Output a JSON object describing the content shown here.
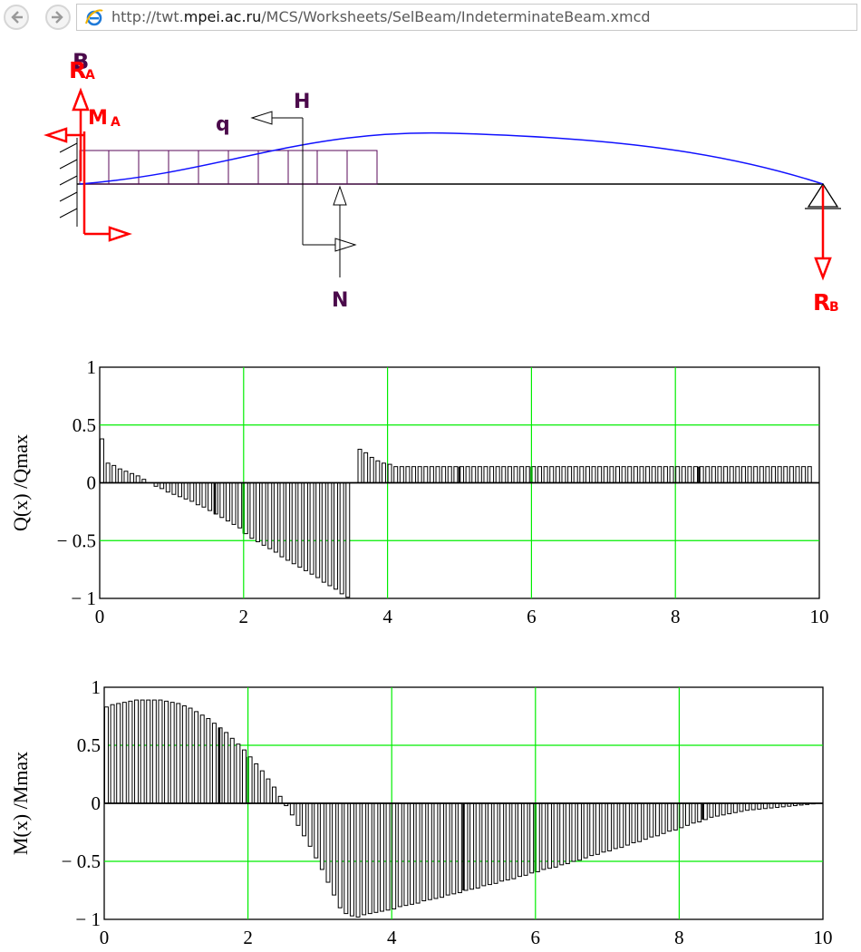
{
  "browser": {
    "url_host": "http://twt.",
    "url_domain": "mpei.ac.ru",
    "url_path": "/MCS/Worksheets/SelBeam/IndeterminateBeam.xmcd"
  },
  "diagram": {
    "labels": {
      "ra": "R",
      "ra_sub": "A",
      "b": "B",
      "ma": "M",
      "ma_sub": "A",
      "q": "q",
      "h": "H",
      "n": "N",
      "rb": "R",
      "rb_sub": "B"
    },
    "colors": {
      "reaction": "#ff0000",
      "label": "#4b0a4b",
      "load": "#5a0a5a",
      "deflection": "#1010ff",
      "beam": "#000000"
    }
  },
  "chart_data": [
    {
      "type": "bar",
      "title": "",
      "xlabel": "",
      "ylabel": "Q(x) /Qmax",
      "xlim": [
        0,
        10
      ],
      "ylim": [
        -1,
        1
      ],
      "xticks": [
        "0",
        "2",
        "4",
        "6",
        "8",
        "10"
      ],
      "yticks": [
        "1",
        "0.5",
        "0",
        "− 0.5",
        "− 1"
      ],
      "grid": true,
      "bar_width_x": 0.05,
      "bar_step_x": 0.083333,
      "highlight_bars_x": [
        1.6,
        5.0,
        8.33
      ],
      "x": [
        0.0,
        0.0833,
        0.1667,
        0.25,
        0.3333,
        0.4167,
        0.5,
        0.5833,
        0.6667,
        0.75,
        0.8333,
        0.9167,
        1.0,
        1.0833,
        1.1667,
        1.25,
        1.3333,
        1.4167,
        1.5,
        1.5833,
        1.6667,
        1.75,
        1.8333,
        1.9167,
        2.0,
        2.0833,
        2.1667,
        2.25,
        2.3333,
        2.4167,
        2.5,
        2.5833,
        2.6667,
        2.75,
        2.8333,
        2.9167,
        3.0,
        3.0833,
        3.1667,
        3.25,
        3.3333,
        3.4167,
        3.5,
        3.5833,
        3.6667,
        3.75,
        3.8333,
        3.9167,
        4.0,
        4.0833,
        4.1667,
        4.25,
        4.3333,
        4.4167,
        4.5,
        4.5833,
        4.6667,
        4.75,
        4.8333,
        4.9167,
        5.0,
        5.0833,
        5.1667,
        5.25,
        5.3333,
        5.4167,
        5.5,
        5.5833,
        5.6667,
        5.75,
        5.8333,
        5.9167,
        6.0,
        6.0833,
        6.1667,
        6.25,
        6.3333,
        6.4167,
        6.5,
        6.5833,
        6.6667,
        6.75,
        6.8333,
        6.9167,
        7.0,
        7.0833,
        7.1667,
        7.25,
        7.3333,
        7.4167,
        7.5,
        7.5833,
        7.6667,
        7.75,
        7.8333,
        7.9167,
        8.0,
        8.0833,
        8.1667,
        8.25,
        8.3333,
        8.4167,
        8.5,
        8.5833,
        8.6667,
        8.75,
        8.8333,
        8.9167,
        9.0,
        9.0833,
        9.1667,
        9.25,
        9.3333,
        9.4167,
        9.5,
        9.5833,
        9.6667,
        9.75,
        9.8333
      ],
      "values": [
        0.38,
        0.17,
        0.15,
        0.12,
        0.1,
        0.08,
        0.06,
        0.03,
        0.0,
        -0.03,
        -0.05,
        -0.08,
        -0.1,
        -0.12,
        -0.14,
        -0.16,
        -0.19,
        -0.21,
        -0.24,
        -0.27,
        -0.3,
        -0.33,
        -0.36,
        -0.39,
        -0.44,
        -0.48,
        -0.51,
        -0.54,
        -0.57,
        -0.6,
        -0.64,
        -0.67,
        -0.7,
        -0.73,
        -0.76,
        -0.79,
        -0.82,
        -0.86,
        -0.89,
        -0.92,
        -0.96,
        -0.99,
        0.0,
        0.29,
        0.26,
        0.22,
        0.19,
        0.17,
        0.16,
        0.14,
        0.14,
        0.14,
        0.14,
        0.14,
        0.14,
        0.14,
        0.14,
        0.14,
        0.14,
        0.14,
        0.14,
        0.14,
        0.14,
        0.14,
        0.14,
        0.14,
        0.14,
        0.14,
        0.14,
        0.14,
        0.14,
        0.14,
        0.14,
        0.14,
        0.14,
        0.14,
        0.14,
        0.14,
        0.14,
        0.14,
        0.14,
        0.14,
        0.14,
        0.14,
        0.14,
        0.14,
        0.14,
        0.14,
        0.14,
        0.14,
        0.14,
        0.14,
        0.14,
        0.14,
        0.14,
        0.14,
        0.14,
        0.14,
        0.14,
        0.14,
        0.14,
        0.14,
        0.14,
        0.14,
        0.14,
        0.14,
        0.14,
        0.14,
        0.14,
        0.14,
        0.14,
        0.14,
        0.14,
        0.14,
        0.14,
        0.14,
        0.14,
        0.14,
        0.14
      ]
    },
    {
      "type": "bar",
      "title": "",
      "xlabel": "",
      "ylabel": "M(x) /Mmax",
      "xlim": [
        0,
        10
      ],
      "ylim": [
        -1,
        1
      ],
      "xticks": [
        "0",
        "2",
        "4",
        "6",
        "8",
        "10"
      ],
      "yticks": [
        "1",
        "0.5",
        "0",
        "− 0.5",
        "− 1"
      ],
      "grid": true,
      "bar_width_x": 0.05,
      "bar_step_x": 0.083333,
      "highlight_bars_x": [
        1.6,
        5.0,
        8.33
      ],
      "x": [
        0.0,
        0.0833,
        0.1667,
        0.25,
        0.3333,
        0.4167,
        0.5,
        0.5833,
        0.6667,
        0.75,
        0.8333,
        0.9167,
        1.0,
        1.0833,
        1.1667,
        1.25,
        1.3333,
        1.4167,
        1.5,
        1.5833,
        1.6667,
        1.75,
        1.8333,
        1.9167,
        2.0,
        2.0833,
        2.1667,
        2.25,
        2.3333,
        2.4167,
        2.5,
        2.5833,
        2.6667,
        2.75,
        2.8333,
        2.9167,
        3.0,
        3.0833,
        3.1667,
        3.25,
        3.3333,
        3.4167,
        3.5,
        3.5833,
        3.6667,
        3.75,
        3.8333,
        3.9167,
        4.0,
        4.0833,
        4.1667,
        4.25,
        4.3333,
        4.4167,
        4.5,
        4.5833,
        4.6667,
        4.75,
        4.8333,
        4.9167,
        5.0,
        5.0833,
        5.1667,
        5.25,
        5.3333,
        5.4167,
        5.5,
        5.5833,
        5.6667,
        5.75,
        5.8333,
        5.9167,
        6.0,
        6.0833,
        6.1667,
        6.25,
        6.3333,
        6.4167,
        6.5,
        6.5833,
        6.6667,
        6.75,
        6.8333,
        6.9167,
        7.0,
        7.0833,
        7.1667,
        7.25,
        7.3333,
        7.4167,
        7.5,
        7.5833,
        7.6667,
        7.75,
        7.8333,
        7.9167,
        8.0,
        8.0833,
        8.1667,
        8.25,
        8.3333,
        8.4167,
        8.5,
        8.5833,
        8.6667,
        8.75,
        8.8333,
        8.9167,
        9.0,
        9.0833,
        9.1667,
        9.25,
        9.3333,
        9.4167,
        9.5,
        9.5833,
        9.6667,
        9.75,
        9.8333,
        9.9167
      ],
      "values": [
        0.83,
        0.85,
        0.86,
        0.87,
        0.88,
        0.89,
        0.89,
        0.89,
        0.89,
        0.89,
        0.88,
        0.87,
        0.86,
        0.84,
        0.82,
        0.79,
        0.76,
        0.73,
        0.69,
        0.65,
        0.61,
        0.56,
        0.51,
        0.46,
        0.4,
        0.34,
        0.28,
        0.21,
        0.14,
        0.06,
        -0.02,
        -0.1,
        -0.19,
        -0.28,
        -0.37,
        -0.47,
        -0.57,
        -0.68,
        -0.79,
        -0.9,
        -0.95,
        -0.97,
        -0.98,
        -0.96,
        -0.95,
        -0.94,
        -0.93,
        -0.92,
        -0.91,
        -0.89,
        -0.88,
        -0.87,
        -0.86,
        -0.84,
        -0.83,
        -0.82,
        -0.81,
        -0.79,
        -0.78,
        -0.77,
        -0.75,
        -0.74,
        -0.73,
        -0.71,
        -0.7,
        -0.69,
        -0.67,
        -0.66,
        -0.65,
        -0.63,
        -0.62,
        -0.6,
        -0.59,
        -0.57,
        -0.56,
        -0.55,
        -0.53,
        -0.52,
        -0.5,
        -0.49,
        -0.47,
        -0.45,
        -0.44,
        -0.42,
        -0.41,
        -0.39,
        -0.38,
        -0.36,
        -0.34,
        -0.33,
        -0.31,
        -0.29,
        -0.28,
        -0.26,
        -0.24,
        -0.23,
        -0.21,
        -0.19,
        -0.17,
        -0.16,
        -0.14,
        -0.12,
        -0.11,
        -0.1,
        -0.09,
        -0.08,
        -0.07,
        -0.06,
        -0.055,
        -0.05,
        -0.045,
        -0.04,
        -0.035,
        -0.03,
        -0.025,
        -0.02,
        -0.015,
        -0.01,
        -0.005,
        -0.002
      ]
    }
  ]
}
